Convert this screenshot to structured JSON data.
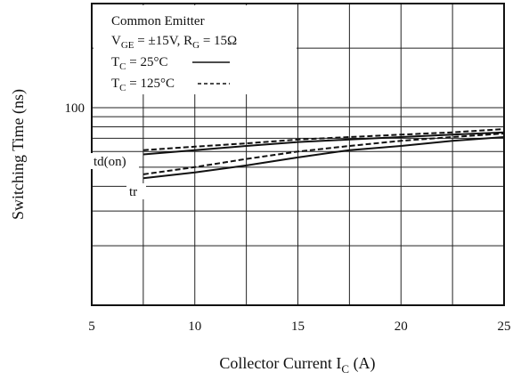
{
  "chart_data": {
    "type": "line",
    "x_label_main": "Collector Current  I",
    "x_label_sub": "C",
    "x_label_unit": " (A)",
    "ylabel": "Switching Time  (ns)",
    "xlim": [
      5,
      25
    ],
    "x_ticks": [
      "5",
      "10",
      "15",
      "20",
      "25"
    ],
    "ylim_log": [
      10,
      200
    ],
    "y_tick_labels": [
      {
        "value": 100,
        "label": "100"
      }
    ],
    "grid": true,
    "legend": {
      "title": "Common Emitter",
      "conditions": {
        "vge_main": "V",
        "vge_sub": "GE",
        "vge_val": " = ±15V, R",
        "rg_sub": "G",
        "rg_val": " = 15Ω"
      },
      "entries": [
        {
          "t_main": "T",
          "t_sub": "C",
          "t_val": " = 25°C",
          "style": "solid"
        },
        {
          "t_main": "T",
          "t_sub": "C",
          "t_val": " = 125°C",
          "style": "dashed"
        }
      ]
    },
    "series": [
      {
        "name": "td(on)",
        "condition": "25°C",
        "style": "solid",
        "x": [
          7.5,
          10,
          12.5,
          15,
          17.5,
          20,
          22.5,
          25
        ],
        "y": [
          58,
          61,
          64,
          67,
          69,
          71,
          73,
          75
        ]
      },
      {
        "name": "td(on)",
        "condition": "125°C",
        "style": "dashed",
        "x": [
          7.5,
          10,
          12.5,
          15,
          17.5,
          20,
          22.5,
          25
        ],
        "y": [
          61,
          63.5,
          66,
          69,
          71,
          73,
          75,
          78
        ]
      },
      {
        "name": "tr",
        "condition": "25°C",
        "style": "solid",
        "x": [
          7.5,
          10,
          12.5,
          15,
          17.5,
          20,
          22.5,
          25
        ],
        "y": [
          44,
          47,
          51,
          56,
          61,
          64,
          68,
          71
        ]
      },
      {
        "name": "tr",
        "condition": "125°C",
        "style": "dashed",
        "x": [
          7.5,
          10,
          12.5,
          15,
          17.5,
          20,
          22.5,
          25
        ],
        "y": [
          46,
          50,
          55,
          60,
          64,
          68,
          71,
          74
        ]
      }
    ],
    "curve_labels": [
      {
        "text": "td(on)",
        "near_series": 0
      },
      {
        "text": "tr",
        "near_series": 2
      }
    ]
  }
}
